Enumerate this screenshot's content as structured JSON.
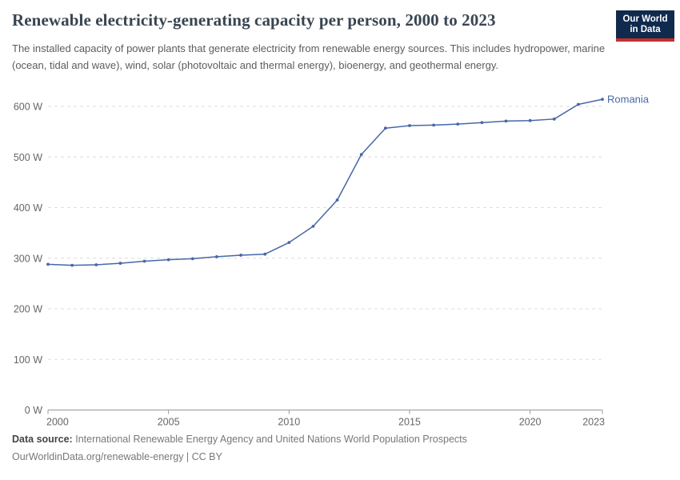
{
  "header": {
    "title": "Renewable electricity-generating capacity per person, 2000 to 2023",
    "subtitle": "The installed capacity of power plants that generate electricity from renewable energy sources. This includes hydropower, marine (ocean, tidal and wave), wind, solar (photovoltaic and thermal energy), bioenergy, and geothermal energy.",
    "logo": {
      "line1": "Our World",
      "line2": "in Data",
      "bg_color": "#102a4e",
      "stripe_color": "#c5302b"
    }
  },
  "chart_data": {
    "type": "line",
    "title": "Renewable electricity-generating capacity per person, 2000 to 2023",
    "xlabel": "",
    "ylabel": "",
    "xlim": [
      2000,
      2023
    ],
    "ylim": [
      0,
      600
    ],
    "x_ticks": [
      2000,
      2005,
      2010,
      2015,
      2020,
      2023
    ],
    "y_ticks": [
      0,
      100,
      200,
      300,
      400,
      500,
      600
    ],
    "y_tick_suffix": " W",
    "grid": "horizontal-dashed",
    "grid_color": "#dedede",
    "axis_color": "#999999",
    "tick_label_color": "#666666",
    "series": [
      {
        "name": "Romania",
        "color": "#4767a8",
        "x": [
          2000,
          2001,
          2002,
          2003,
          2004,
          2005,
          2006,
          2007,
          2008,
          2009,
          2010,
          2011,
          2012,
          2013,
          2014,
          2015,
          2016,
          2017,
          2018,
          2019,
          2020,
          2021,
          2022,
          2023
        ],
        "values": [
          288,
          286,
          287,
          290,
          294,
          297,
          299,
          303,
          306,
          308,
          331,
          363,
          415,
          505,
          557,
          562,
          563,
          565,
          568,
          571,
          572,
          575,
          604,
          614
        ]
      }
    ]
  },
  "footer": {
    "source_label": "Data source:",
    "source_text": "International Renewable Energy Agency and United Nations World Population Prospects",
    "url_line": "OurWorldinData.org/renewable-energy | CC BY"
  }
}
